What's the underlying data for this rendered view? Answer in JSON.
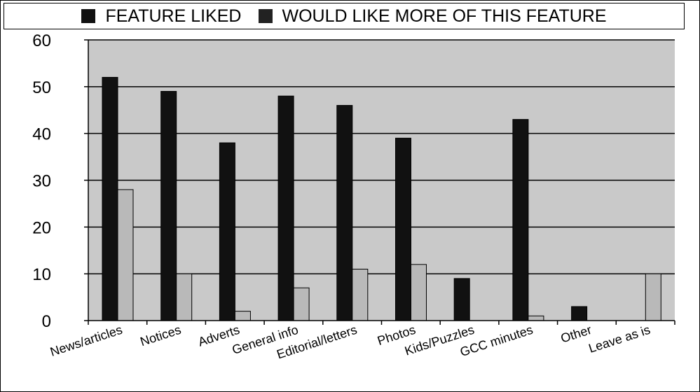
{
  "colors": {
    "liked": "#111111",
    "more": "#b9b9b9",
    "plot_bg": "#c9c9c9",
    "grid": "#000000"
  },
  "legend": {
    "items": [
      {
        "label": "FEATURE LIKED",
        "color": "#111111"
      },
      {
        "label": "WOULD LIKE MORE OF THIS FEATURE",
        "color": "#222222"
      }
    ]
  },
  "chart_data": {
    "type": "bar",
    "categories": [
      "News/articles",
      "Notices",
      "Adverts",
      "General info",
      "Editorial/letters",
      "Photos",
      "Kids/Puzzles",
      "GCC minutes",
      "Other",
      "Leave as is"
    ],
    "series": [
      {
        "name": "FEATURE LIKED",
        "values": [
          52,
          49,
          38,
          48,
          46,
          39,
          9,
          43,
          3,
          0
        ]
      },
      {
        "name": "WOULD LIKE MORE OF THIS FEATURE",
        "values": [
          28,
          10,
          2,
          7,
          11,
          12,
          0,
          1,
          0,
          10
        ]
      }
    ],
    "ylim": [
      0,
      60
    ],
    "yticks": [
      0,
      10,
      20,
      30,
      40,
      50,
      60
    ],
    "grid": true,
    "legend_position": "top"
  }
}
